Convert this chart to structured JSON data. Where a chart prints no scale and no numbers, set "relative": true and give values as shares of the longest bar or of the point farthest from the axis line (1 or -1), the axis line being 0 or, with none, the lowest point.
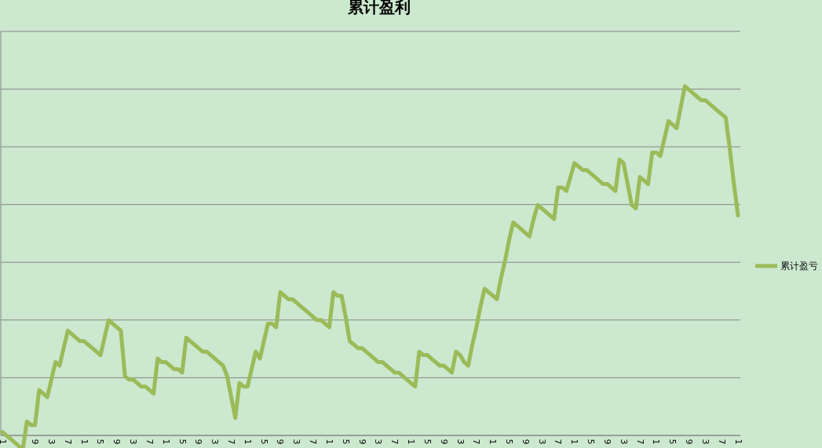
{
  "chart_data": {
    "type": "line",
    "title": "累计盈利",
    "relative": true,
    "grid": "y",
    "legend": "right",
    "line_style": "solid",
    "categories": [
      "1",
      null,
      null,
      null,
      null,
      null,
      null,
      null,
      "9",
      null,
      null,
      null,
      "3",
      null,
      null,
      null,
      "7",
      null,
      null,
      null,
      "1",
      null,
      null,
      null,
      "5",
      null,
      null,
      null,
      "9",
      null,
      null,
      null,
      "3",
      null,
      null,
      null,
      "7",
      null,
      null,
      null,
      "1",
      null,
      null,
      null,
      "5",
      null,
      null,
      null,
      "9",
      null,
      null,
      null,
      "3",
      null,
      null,
      null,
      "7",
      null,
      null,
      null,
      "1",
      null,
      null,
      null,
      "5",
      null,
      null,
      null,
      "9",
      null,
      null,
      null,
      "3",
      null,
      null,
      null,
      "7",
      null,
      null,
      null,
      "1",
      null,
      null,
      null,
      "5",
      null,
      null,
      null,
      "9",
      null,
      null,
      null,
      "3",
      null,
      null,
      null,
      "7",
      null,
      null,
      null,
      "1",
      null,
      null,
      null,
      "5",
      null,
      null,
      null,
      "9",
      null,
      null,
      null,
      "3",
      null,
      null,
      null,
      "7",
      null,
      null,
      null,
      "1",
      null,
      null,
      null,
      "5",
      null,
      null,
      null,
      "9",
      null,
      null,
      null,
      "3",
      null,
      null,
      null,
      "7",
      null,
      null,
      null,
      "1",
      null,
      null,
      null,
      "5",
      null,
      null,
      null,
      "9",
      null,
      null,
      null,
      "3",
      null,
      null,
      null,
      "7",
      null,
      null,
      null,
      "1",
      null,
      null,
      null,
      "5",
      null,
      null,
      null,
      "9",
      null,
      null,
      null,
      "3",
      null,
      null,
      null,
      "7",
      null,
      null,
      null,
      "1"
    ],
    "series": [
      {
        "name": "累计盈亏",
        "color": "#9bbb59",
        "values": [
          0.01,
          0.0,
          -0.01,
          -0.02,
          -0.03,
          -0.04,
          0.04,
          0.03,
          0.03,
          0.13,
          0.12,
          0.11,
          0.16,
          0.21,
          0.2,
          0.25,
          0.3,
          0.29,
          0.28,
          0.27,
          0.27,
          0.26,
          0.25,
          0.24,
          0.23,
          0.28,
          0.33,
          0.32,
          0.31,
          0.3,
          0.17,
          0.16,
          0.16,
          0.15,
          0.14,
          0.14,
          0.13,
          0.12,
          0.22,
          0.21,
          0.21,
          0.2,
          0.19,
          0.19,
          0.18,
          0.28,
          0.27,
          0.26,
          0.25,
          0.24,
          0.24,
          0.23,
          0.22,
          0.21,
          0.2,
          0.17,
          0.11,
          0.05,
          0.15,
          0.14,
          0.14,
          0.19,
          0.24,
          0.22,
          0.27,
          0.32,
          0.32,
          0.31,
          0.41,
          0.4,
          0.39,
          0.39,
          0.38,
          0.37,
          0.36,
          0.35,
          0.34,
          0.33,
          0.33,
          0.32,
          0.31,
          0.41,
          0.4,
          0.4,
          0.34,
          0.27,
          0.26,
          0.25,
          0.25,
          0.24,
          0.23,
          0.22,
          0.21,
          0.21,
          0.2,
          0.19,
          0.18,
          0.18,
          0.17,
          0.16,
          0.15,
          0.14,
          0.24,
          0.23,
          0.23,
          0.22,
          0.21,
          0.2,
          0.2,
          0.19,
          0.18,
          0.24,
          0.23,
          0.21,
          0.2,
          0.26,
          0.31,
          0.37,
          0.42,
          0.41,
          0.4,
          0.39,
          0.45,
          0.5,
          0.56,
          0.61,
          0.6,
          0.59,
          0.58,
          0.57,
          0.62,
          0.66,
          0.65,
          0.64,
          0.63,
          0.62,
          0.71,
          0.71,
          0.7,
          0.74,
          0.78,
          0.77,
          0.76,
          0.76,
          0.75,
          0.74,
          0.73,
          0.72,
          0.72,
          0.71,
          0.7,
          0.79,
          0.78,
          0.72,
          0.66,
          0.65,
          0.74,
          0.73,
          0.72,
          0.81,
          0.81,
          0.8,
          0.85,
          0.9,
          0.89,
          0.88,
          0.94,
          1,
          0.99,
          0.98,
          0.97,
          0.96,
          0.96,
          0.95,
          0.94,
          0.93,
          0.92,
          0.91,
          0.82,
          0.72,
          0.63
        ]
      }
    ]
  }
}
